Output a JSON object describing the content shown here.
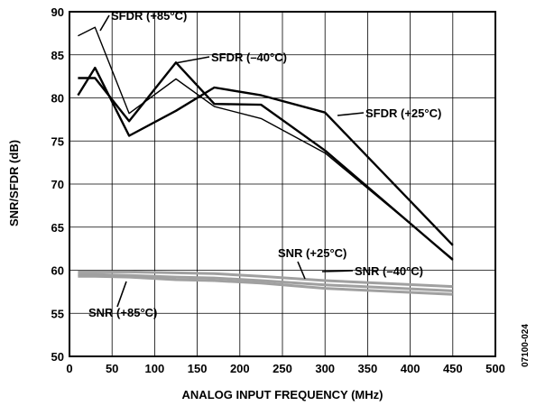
{
  "chart_data": {
    "type": "line",
    "xlabel": "ANALOG INPUT FREQUENCY (MHz)",
    "ylabel": "SNR/SFDR (dB)",
    "xlim": [
      0,
      500
    ],
    "ylim": [
      50,
      90
    ],
    "xticks": [
      "0",
      "50",
      "100",
      "150",
      "200",
      "250",
      "300",
      "350",
      "400",
      "450",
      "500"
    ],
    "yticks": [
      "50",
      "55",
      "60",
      "65",
      "70",
      "75",
      "80",
      "85",
      "90"
    ],
    "grid": true,
    "figure_id": "07100-024",
    "series": [
      {
        "name": "SFDR (+85°C)",
        "color": "#000000",
        "x": [
          10,
          30,
          70,
          125,
          170,
          225,
          300,
          450
        ],
        "y": [
          87.2,
          88.2,
          78.2,
          82.2,
          79.0,
          77.6,
          73.6,
          61.3
        ]
      },
      {
        "name": "SFDR (–40°C)",
        "color": "#000000",
        "x": [
          10,
          30,
          70,
          125,
          170,
          225,
          300,
          450
        ],
        "y": [
          82.3,
          82.3,
          77.3,
          84.1,
          79.3,
          79.2,
          73.9,
          61.2
        ]
      },
      {
        "name": "SFDR (+25°C)",
        "color": "#000000",
        "x": [
          10,
          30,
          70,
          125,
          170,
          225,
          300,
          450
        ],
        "y": [
          80.3,
          83.5,
          75.6,
          78.5,
          81.2,
          80.3,
          78.3,
          62.9
        ]
      },
      {
        "name": "SNR (–40°C)",
        "color": "#a0a0a0",
        "x": [
          10,
          30,
          70,
          125,
          170,
          225,
          300,
          450
        ],
        "y": [
          59.8,
          59.8,
          59.8,
          59.7,
          59.6,
          59.3,
          58.8,
          58.1
        ]
      },
      {
        "name": "SNR (+25°C)",
        "color": "#a0a0a0",
        "x": [
          10,
          30,
          70,
          125,
          170,
          225,
          300,
          450
        ],
        "y": [
          59.5,
          59.5,
          59.4,
          59.2,
          59.1,
          58.8,
          58.3,
          57.6
        ]
      },
      {
        "name": "SNR (+85°C)",
        "color": "#a0a0a0",
        "x": [
          10,
          30,
          70,
          125,
          170,
          225,
          300,
          450
        ],
        "y": [
          59.3,
          59.3,
          59.2,
          58.9,
          58.8,
          58.5,
          57.9,
          57.2
        ]
      }
    ],
    "annotations": [
      {
        "label": "SFDR (+85°C)",
        "series": 0
      },
      {
        "label": "SFDR (–40°C)",
        "series": 1
      },
      {
        "label": "SFDR (+25°C)",
        "series": 2
      },
      {
        "label": "SNR (+25°C)",
        "series": 4
      },
      {
        "label": "SNR (–40°C)",
        "series": 3
      },
      {
        "label": "SNR (+85°C)",
        "series": 5
      }
    ]
  }
}
